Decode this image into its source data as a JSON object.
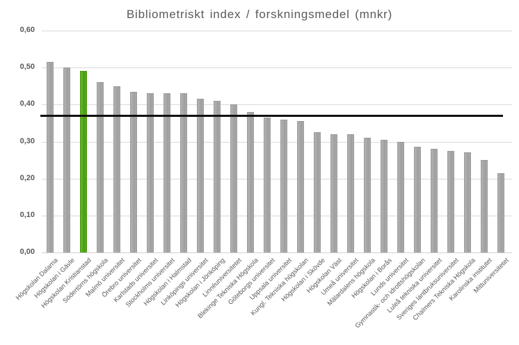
{
  "chart_data": {
    "type": "bar",
    "title": "Bibliometriskt index / forskningsmedel (mnkr)",
    "categories": [
      "Högskolan Dalarna",
      "Högskolan i Gävle",
      "Högskolan Kristianstad",
      "Södertörns högskola",
      "Malmö universitet",
      "Örebro universitet",
      "Karlstads universitet",
      "Stockholms universitet",
      "Högskolan i Halmstad",
      "Linköpings universitet",
      "Högskolan i Jönköping",
      "Linnéuniversitetet",
      "Blekinge Tekniska Högskola",
      "Göteborgs universitet",
      "Uppsala universitet",
      "Kungl. Tekniska högskolan",
      "Högskolan i Skövde",
      "Högskolan Väst",
      "Umeå universitet",
      "Mälardalens högskola",
      "Högskolan i Borås",
      "Lunds universitet",
      "Gymnastik- och idrottshögskolan",
      "Luleå tekniska universitet",
      "Sveriges lantbruksuniversitet",
      "Chalmers Tekniska Högskola",
      "Karolinska institutet",
      "Mittuniversitetet"
    ],
    "values": [
      0.515,
      0.5,
      0.49,
      0.46,
      0.45,
      0.435,
      0.43,
      0.43,
      0.43,
      0.415,
      0.41,
      0.4,
      0.38,
      0.365,
      0.36,
      0.355,
      0.325,
      0.32,
      0.32,
      0.31,
      0.305,
      0.3,
      0.285,
      0.28,
      0.275,
      0.27,
      0.25,
      0.215
    ],
    "highlight_category": "Högskolan Kristianstad",
    "highlight_index": 2,
    "reference_line_value": 0.37,
    "xlabel": "",
    "ylabel": "",
    "ylim": [
      0,
      0.6
    ],
    "ytick_values": [
      0,
      0.1,
      0.2,
      0.3,
      0.4,
      0.5,
      0.6
    ],
    "ytick_labels": [
      "0,00",
      "0,10",
      "0,20",
      "0,30",
      "0,40",
      "0,50",
      "0,60"
    ],
    "grid": true,
    "legend": false,
    "colors": {
      "bar": "#a6a6a6",
      "bar_border": "#9b9b9b",
      "highlight": "#54a81c",
      "highlight_border": "#47950f",
      "gridline": "#d9d9d9",
      "reference_line": "#111111",
      "text": "#595959"
    }
  }
}
